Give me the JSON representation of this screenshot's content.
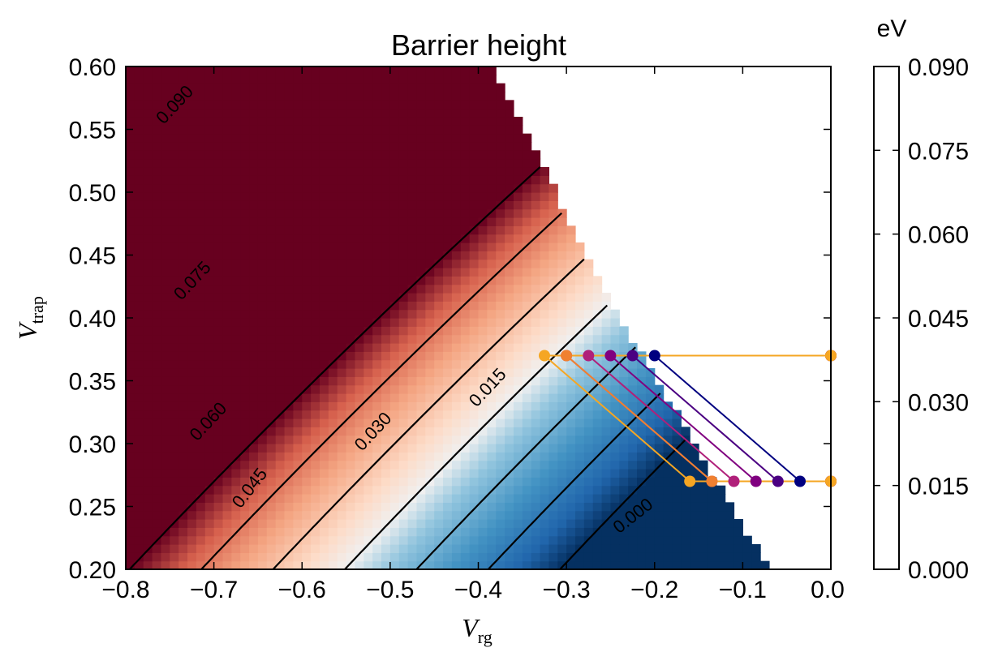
{
  "chart_data": {
    "type": "heatmap",
    "title": "Barrier height",
    "xlabel": "V",
    "xlabel_sub": "rg",
    "ylabel": "V",
    "ylabel_sub": "trap",
    "xlim": [
      -0.8,
      0.0
    ],
    "ylim": [
      0.2,
      0.6
    ],
    "xticks": [
      "−0.8",
      "−0.7",
      "−0.6",
      "−0.5",
      "−0.4",
      "−0.3",
      "−0.2",
      "−0.1",
      "0.0"
    ],
    "yticks": [
      "0.20",
      "0.25",
      "0.30",
      "0.35",
      "0.40",
      "0.45",
      "0.50",
      "0.55",
      "0.60"
    ],
    "colormap": "RdBu_r",
    "colorbar": {
      "label": "eV",
      "range": [
        0.0,
        0.09
      ],
      "ticks": [
        "0.000",
        "0.015",
        "0.030",
        "0.045",
        "0.060",
        "0.075",
        "0.090"
      ]
    },
    "contour_labels": [
      "0.090",
      "0.075",
      "0.060",
      "0.045",
      "0.030",
      "0.015",
      "0.000"
    ],
    "paths": [
      {
        "color": "#000080",
        "top_left": [
          -0.2,
          0.37
        ],
        "bottom_left": [
          -0.035,
          0.27
        ],
        "right": 0.0
      },
      {
        "color": "#4b0082",
        "top_left": [
          -0.225,
          0.37
        ],
        "bottom_left": [
          -0.06,
          0.27
        ],
        "right": 0.0
      },
      {
        "color": "#800080",
        "top_left": [
          -0.25,
          0.37
        ],
        "bottom_left": [
          -0.085,
          0.27
        ],
        "right": 0.0
      },
      {
        "color": "#b0207a",
        "top_left": [
          -0.275,
          0.37
        ],
        "bottom_left": [
          -0.11,
          0.27
        ],
        "right": 0.0
      },
      {
        "color": "#d04a60",
        "top_left": [
          -0.3,
          0.37
        ],
        "bottom_left": [
          -0.135,
          0.27
        ],
        "right": 0.0
      },
      {
        "color": "#f08030",
        "top_left": [
          -0.3,
          0.37
        ],
        "bottom_left": [
          -0.135,
          0.27
        ],
        "right": 0.0
      },
      {
        "color": "#f5a623",
        "top_left": [
          -0.325,
          0.37
        ],
        "bottom_left": [
          -0.16,
          0.27
        ],
        "right": 0.0
      }
    ]
  }
}
